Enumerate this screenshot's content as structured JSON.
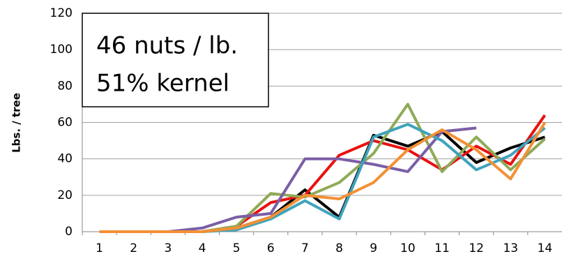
{
  "chart_data": {
    "type": "line",
    "ylabel": "Lbs. / tree",
    "annotations": [
      "46 nuts / lb.",
      "51% kernel"
    ],
    "categories": [
      "1",
      "2",
      "3",
      "4",
      "5",
      "6",
      "7",
      "8",
      "9",
      "10",
      "11",
      "12",
      "13",
      "14"
    ],
    "series": [
      {
        "color": "#000000",
        "values": [
          0,
          0,
          0,
          0,
          2,
          8,
          23,
          8,
          53,
          47,
          55,
          38,
          46,
          52
        ]
      },
      {
        "color": "#e8110f",
        "values": [
          0,
          0,
          0,
          0,
          3,
          16,
          20,
          42,
          50,
          45,
          34,
          47,
          37,
          64
        ]
      },
      {
        "color": "#8faa57",
        "values": [
          0,
          0,
          0,
          0,
          3,
          21,
          19,
          27,
          43,
          70,
          33,
          52,
          34,
          51
        ]
      },
      {
        "color": "#7b5ea6",
        "values": [
          0,
          0,
          0,
          2,
          8,
          10,
          40,
          40,
          37,
          33,
          55,
          57,
          null,
          null
        ]
      },
      {
        "color": "#3fa3bc",
        "values": [
          0,
          0,
          0,
          0,
          1,
          7,
          17,
          7,
          52,
          59,
          50,
          34,
          42,
          57
        ]
      },
      {
        "color": "#f39035",
        "values": [
          0,
          0,
          0,
          0,
          2,
          8,
          20,
          18,
          27,
          45,
          56,
          45,
          29,
          60
        ]
      }
    ],
    "ylim": [
      0,
      120
    ],
    "yticks": [
      0,
      20,
      40,
      60,
      80,
      100,
      120
    ],
    "grid": true
  }
}
